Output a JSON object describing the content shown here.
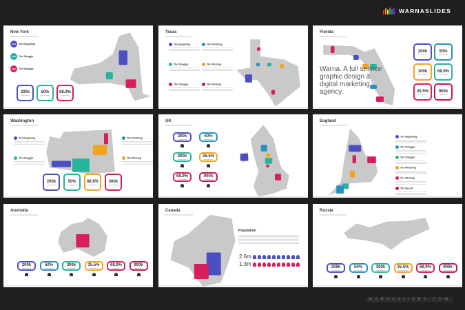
{
  "brand": {
    "name": "WARNASLIDES",
    "footer": "WARNASLIDES.COM"
  },
  "colors": {
    "purple": "#4c4fc2",
    "teal": "#26b59c",
    "pink": "#d81f5e",
    "orange": "#f3a41b",
    "blue": "#2a8fc1",
    "gray": "#c9c9c9"
  },
  "slides": [
    {
      "title": "New York",
      "items": [
        "The Beginning",
        "The Struggle",
        "The Struggle"
      ],
      "badges": [
        "20%",
        "20%",
        "20%"
      ],
      "stats": [
        "200k",
        "50%",
        "68.9%"
      ]
    },
    {
      "title": "Texas",
      "items": [
        "The Beginning",
        "The Finishing",
        "The Struggle",
        "The Winning",
        "The Struggle",
        "The Winning"
      ]
    },
    {
      "title": "Florida",
      "tagline": "Warna. A full service graphic design & digital marketing agency.",
      "stats": [
        "200k",
        "50%",
        "300k",
        "68.9%",
        "35.5%",
        "900k"
      ]
    },
    {
      "title": "Washington",
      "items": [
        "The Beginning",
        "The Finishing",
        "The Struggle",
        "The Winning"
      ],
      "stats": [
        "200k",
        "50%",
        "68.9%",
        "300k"
      ]
    },
    {
      "title": "UK",
      "stats": [
        "200k",
        "50%",
        "300k",
        "35.5%",
        "68.9%",
        "900k"
      ]
    },
    {
      "title": "England",
      "items": [
        "The Beginning",
        "The Struggle",
        "The Struggle",
        "The Finishing",
        "The Winning",
        "The Result"
      ]
    },
    {
      "title": "Australia",
      "stats": [
        "200k",
        "50%",
        "300k",
        "35.5%",
        "68.9%",
        "900k"
      ]
    },
    {
      "title": "Canada",
      "heading": "Population",
      "rows": [
        {
          "value": "2.6m",
          "count": 10
        },
        {
          "value": "1.3m",
          "count": 10
        }
      ]
    },
    {
      "title": "Russia",
      "stats": [
        "200k",
        "50%",
        "300k",
        "35.5%",
        "68.9%",
        "900k"
      ]
    }
  ]
}
